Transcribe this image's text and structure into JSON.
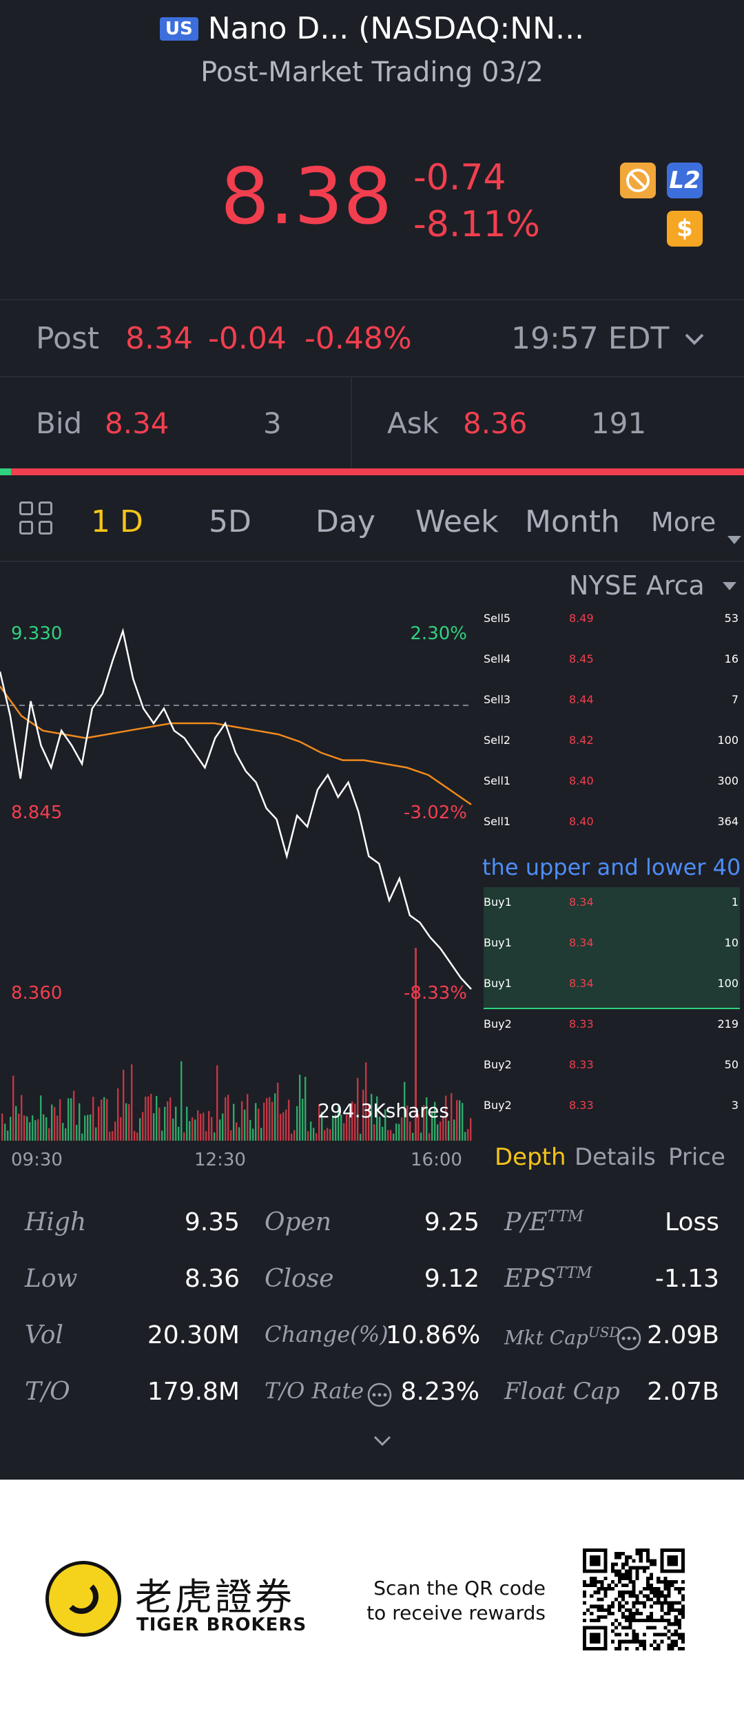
{
  "header": {
    "market_badge": "US",
    "title": "Nano D... (NASDAQ:NN...",
    "subtitle": "Post-Market Trading 03/2",
    "price": "8.38",
    "change": "-0.74",
    "change_pct": "-8.11%",
    "icons": [
      "no-sign-icon",
      "level2-icon",
      "dollar-icon"
    ],
    "level2_label": "L2",
    "dollar_label": "$"
  },
  "post": {
    "label": "Post",
    "price": "8.34",
    "change": "-0.04",
    "change_pct": "-0.48%",
    "time": "19:57 EDT"
  },
  "quote": {
    "bid_label": "Bid",
    "bid_price": "8.34",
    "bid_size": "3",
    "ask_label": "Ask",
    "ask_price": "8.36",
    "ask_size": "191"
  },
  "tabs": [
    "1 D",
    "5D",
    "Day",
    "Week",
    "Month",
    "More"
  ],
  "active_tab": "1 D",
  "chart_data": {
    "type": "line",
    "title": "",
    "high_label": "9.330",
    "high_pct": "2.30%",
    "mid_label": "8.845",
    "mid_pct": "-3.02%",
    "low_label": "8.360",
    "low_pct": "-8.33%",
    "volume_label": "294.3Kshares",
    "x_ticks": [
      "09:30",
      "12:30",
      "16:00"
    ],
    "ylim": [
      8.36,
      9.33
    ],
    "prev_close": 9.12,
    "series": [
      {
        "values": [
          9.22,
          9.1,
          8.93,
          9.14,
          9.02,
          8.96,
          9.06,
          9.02,
          8.97,
          9.12,
          9.16,
          9.25,
          9.33,
          9.2,
          9.12,
          9.08,
          9.12,
          9.06,
          9.04,
          9.0,
          8.96,
          9.04,
          9.08,
          9.0,
          8.95,
          8.92,
          8.85,
          8.82,
          8.72,
          8.83,
          8.8,
          8.9,
          8.94,
          8.88,
          8.92,
          8.84,
          8.72,
          8.7,
          8.6,
          8.66,
          8.56,
          8.54,
          8.5,
          8.47,
          8.43,
          8.39,
          8.36
        ]
      },
      {
        "values": [
          9.18,
          9.1,
          9.06,
          9.05,
          9.04,
          9.05,
          9.06,
          9.07,
          9.08,
          9.08,
          9.08,
          9.07,
          9.06,
          9.05,
          9.03,
          9.0,
          8.98,
          8.98,
          8.97,
          8.96,
          8.94,
          8.9,
          8.86
        ]
      }
    ]
  },
  "orderbook": {
    "exchange": "NYSE Arca",
    "notice": "the upper and lower 40",
    "sells": [
      {
        "label": "Sell5",
        "price": "8.49",
        "size": "53"
      },
      {
        "label": "Sell4",
        "price": "8.45",
        "size": "16"
      },
      {
        "label": "Sell3",
        "price": "8.44",
        "size": "7"
      },
      {
        "label": "Sell2",
        "price": "8.42",
        "size": "100"
      },
      {
        "label": "Sell1",
        "price": "8.40",
        "size": "300"
      },
      {
        "label": "Sell1",
        "price": "8.40",
        "size": "364"
      }
    ],
    "buys": [
      {
        "label": "Buy1",
        "price": "8.34",
        "size": "1"
      },
      {
        "label": "Buy1",
        "price": "8.34",
        "size": "10"
      },
      {
        "label": "Buy1",
        "price": "8.34",
        "size": "100"
      },
      {
        "label": "Buy2",
        "price": "8.33",
        "size": "219"
      },
      {
        "label": "Buy2",
        "price": "8.33",
        "size": "50"
      },
      {
        "label": "Buy2",
        "price": "8.33",
        "size": "3"
      }
    ],
    "tabs": [
      "Depth",
      "Details",
      "Price"
    ],
    "active_tab": "Depth"
  },
  "stats": {
    "high_label": "High",
    "high": "9.35",
    "low_label": "Low",
    "low": "8.36",
    "vol_label": "Vol",
    "vol": "20.30M",
    "to_label": "T/O",
    "to": "179.8M",
    "open_label": "Open",
    "open": "9.25",
    "close_label": "Close",
    "close": "9.12",
    "changepct_label": "Change(%)",
    "changepct": "10.86%",
    "torate_label": "T/O Rate",
    "torate": "8.23%",
    "pe_label": "P/E",
    "pe_sup": "TTM",
    "pe": "Loss",
    "eps_label": "EPS",
    "eps_sup": "TTM",
    "eps": "-1.13",
    "mktcap_label": "Mkt Cap",
    "mktcap_sup": "USD",
    "mktcap": "2.09B",
    "floatcap_label": "Float Cap",
    "floatcap": "2.07B"
  },
  "footer": {
    "brand_cn": "老虎證券",
    "brand_en": "TIGER BROKERS",
    "scan_line1": "Scan the QR code",
    "scan_line2": "to receive rewards"
  },
  "colors": {
    "red": "#f23f4f",
    "green": "#2fd27f",
    "accent": "#f5c518",
    "line": "#ffffff",
    "avg_line": "#f08a1c"
  }
}
